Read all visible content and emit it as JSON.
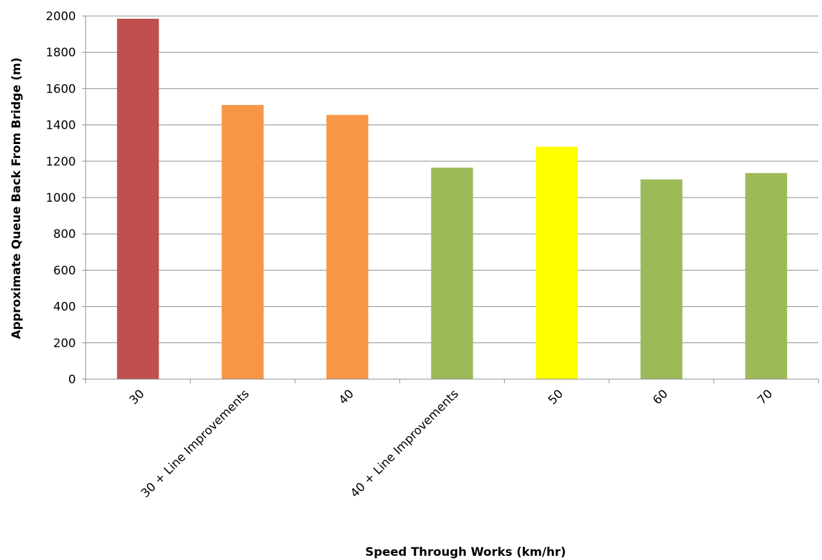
{
  "chart_data": {
    "type": "bar",
    "title": "",
    "xlabel": "Speed Through Works (km/hr)",
    "ylabel": "Approximate Queue Back From Bridge (m)",
    "ylim": [
      0,
      2000
    ],
    "yticks": [
      0,
      200,
      400,
      600,
      800,
      1000,
      1200,
      1400,
      1600,
      1800,
      2000
    ],
    "grid": true,
    "legend": "none",
    "categories": [
      "30",
      "30 + Line Improvements",
      "40",
      "40 + Line Improvements",
      "50",
      "60",
      "70"
    ],
    "values": [
      1985,
      1510,
      1455,
      1165,
      1280,
      1100,
      1135
    ],
    "bar_colors": [
      "#c0504d",
      "#f79646",
      "#f79646",
      "#9bbb59",
      "#ffff00",
      "#9bbb59",
      "#9bbb59"
    ]
  }
}
